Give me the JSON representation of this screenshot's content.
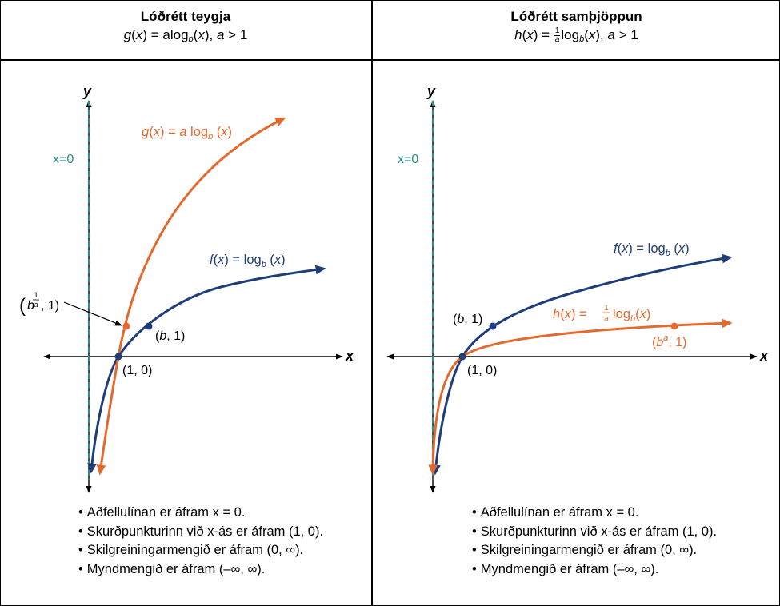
{
  "colors": {
    "blue": "#1F3D7A",
    "orange": "#E36A2E",
    "teal": "#2E8B8B",
    "axis": "#000000"
  },
  "left": {
    "title": "Lóðrétt teygja",
    "formula": {
      "fn": "g",
      "arg": "x",
      "coef": "a",
      "log": "log",
      "base": "b",
      "cond_var": "a",
      "cond_op": ">",
      "cond_val": "1"
    },
    "axes": {
      "x": "x",
      "y": "y"
    },
    "asymptote_label": "x=0",
    "curves": {
      "g": {
        "name": "g",
        "arg": "x",
        "coef": "a",
        "log": "log",
        "base": "b",
        "arg2": "x"
      },
      "f": {
        "name": "f",
        "arg": "x",
        "log": "log",
        "base": "b",
        "arg2": "x"
      }
    },
    "points": {
      "p10": "(1, 0)",
      "pb1": {
        "open": "(",
        "var": "b",
        "rest": ", 1)"
      },
      "pfrac": {
        "open": "(",
        "var": "b",
        "num": "1",
        "den": "a",
        "rest": ", 1)"
      }
    },
    "bullets": [
      "Aðfellulínan er áfram x = 0.",
      "Skurðpunkturinn við x-ás er áfram (1, 0).",
      "Skilgreiningarmengið er áfram (0, ∞).",
      "Myndmengið er áfram (–∞, ∞)."
    ]
  },
  "right": {
    "title": "Lóðrétt samþjöppun",
    "formula": {
      "fn": "h",
      "arg": "x",
      "num": "1",
      "den": "a",
      "log": "log",
      "base": "b",
      "cond_var": "a",
      "cond_op": ">",
      "cond_val": "1"
    },
    "axes": {
      "x": "x",
      "y": "y"
    },
    "asymptote_label": "x=0",
    "curves": {
      "f": {
        "name": "f",
        "arg": "x",
        "log": "log",
        "base": "b",
        "arg2": "x"
      },
      "h": {
        "name": "h",
        "arg": "x",
        "num": "1",
        "den": "a",
        "log": "log",
        "base": "b",
        "arg2": "x"
      }
    },
    "points": {
      "pb1": {
        "open": "(",
        "var": "b",
        "rest": ", 1)"
      },
      "p10": "(1, 0)",
      "pba": {
        "open": "(",
        "var": "b",
        "sup": "a",
        "rest": ", 1)"
      }
    },
    "bullets": [
      "Aðfellulínan er áfram x = 0.",
      "Skurðpunkturinn við x-ás er áfram (1, 0).",
      "Skilgreiningarmengið er áfram (0, ∞).",
      "Myndmengið er áfram (–∞, ∞)."
    ]
  }
}
